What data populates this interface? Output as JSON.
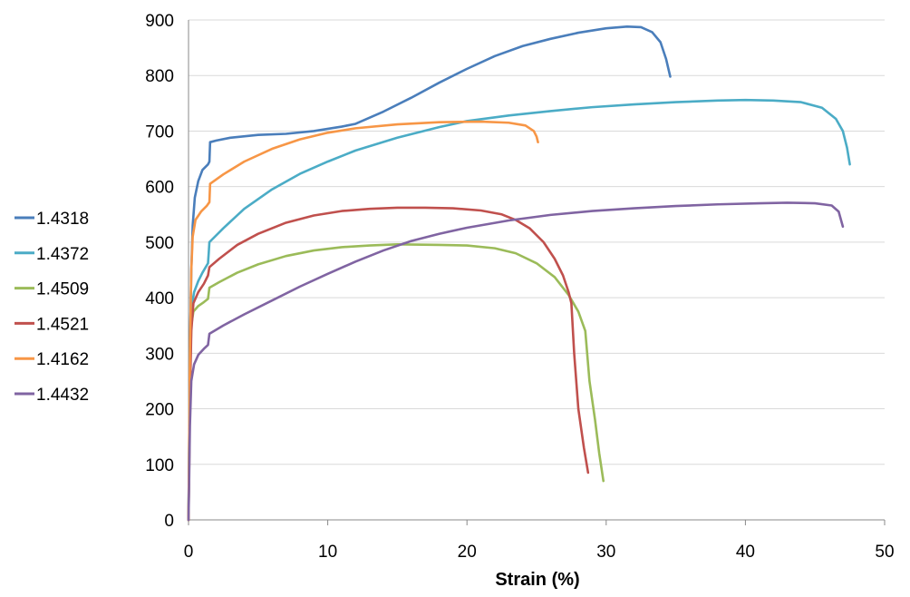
{
  "chart_data": {
    "type": "line",
    "title": "",
    "xlabel": "Strain (%)",
    "ylabel": "",
    "xlim": [
      0,
      50
    ],
    "ylim": [
      0,
      900
    ],
    "x_ticks": [
      "0",
      "10",
      "20",
      "30",
      "40",
      "50"
    ],
    "y_ticks": [
      "0",
      "100",
      "200",
      "300",
      "400",
      "500",
      "600",
      "700",
      "800",
      "900"
    ],
    "grid": "horizontal",
    "legend_position": "left",
    "series": [
      {
        "name": "1.4318",
        "color": "#4a7ebb",
        "points": [
          [
            0,
            0
          ],
          [
            0.05,
            150
          ],
          [
            0.1,
            300
          ],
          [
            0.2,
            450
          ],
          [
            0.3,
            530
          ],
          [
            0.45,
            580
          ],
          [
            0.7,
            610
          ],
          [
            1.0,
            630
          ],
          [
            1.4,
            640
          ],
          [
            1.5,
            645
          ],
          [
            1.55,
            680
          ],
          [
            2,
            683
          ],
          [
            3,
            688
          ],
          [
            5,
            693
          ],
          [
            7,
            695
          ],
          [
            9,
            700
          ],
          [
            11,
            708
          ],
          [
            12,
            713
          ],
          [
            14,
            735
          ],
          [
            16,
            760
          ],
          [
            18,
            787
          ],
          [
            20,
            812
          ],
          [
            22,
            835
          ],
          [
            24,
            853
          ],
          [
            26,
            866
          ],
          [
            28,
            877
          ],
          [
            30,
            885
          ],
          [
            31.5,
            888
          ],
          [
            32.5,
            887
          ],
          [
            33.3,
            878
          ],
          [
            33.9,
            860
          ],
          [
            34.3,
            830
          ],
          [
            34.6,
            798
          ]
        ]
      },
      {
        "name": "1.4372",
        "color": "#4bacc6",
        "points": [
          [
            0,
            0
          ],
          [
            0.05,
            150
          ],
          [
            0.1,
            300
          ],
          [
            0.2,
            380
          ],
          [
            0.4,
            410
          ],
          [
            0.7,
            430
          ],
          [
            1.0,
            445
          ],
          [
            1.4,
            462
          ],
          [
            1.45,
            480
          ],
          [
            1.5,
            500
          ],
          [
            2.5,
            525
          ],
          [
            4,
            560
          ],
          [
            6,
            595
          ],
          [
            8,
            623
          ],
          [
            10,
            645
          ],
          [
            12,
            665
          ],
          [
            15,
            688
          ],
          [
            18,
            707
          ],
          [
            20,
            718
          ],
          [
            23,
            728
          ],
          [
            26,
            736
          ],
          [
            29,
            743
          ],
          [
            32,
            748
          ],
          [
            35,
            752
          ],
          [
            38,
            755
          ],
          [
            40,
            756
          ],
          [
            42,
            755
          ],
          [
            44,
            752
          ],
          [
            45.5,
            742
          ],
          [
            46.5,
            722
          ],
          [
            47,
            700
          ],
          [
            47.3,
            670
          ],
          [
            47.5,
            640
          ]
        ]
      },
      {
        "name": "1.4509",
        "color": "#9bbb59",
        "points": [
          [
            0,
            0
          ],
          [
            0.05,
            120
          ],
          [
            0.1,
            250
          ],
          [
            0.2,
            350
          ],
          [
            0.35,
            375
          ],
          [
            0.7,
            385
          ],
          [
            1.1,
            392
          ],
          [
            1.4,
            398
          ],
          [
            1.5,
            418
          ],
          [
            2.2,
            428
          ],
          [
            3.5,
            445
          ],
          [
            5,
            460
          ],
          [
            7,
            475
          ],
          [
            9,
            485
          ],
          [
            11,
            491
          ],
          [
            13,
            494
          ],
          [
            15,
            496
          ],
          [
            18,
            495
          ],
          [
            20,
            494
          ],
          [
            22,
            489
          ],
          [
            23.5,
            480
          ],
          [
            25,
            462
          ],
          [
            26.3,
            437
          ],
          [
            27.3,
            405
          ],
          [
            28,
            375
          ],
          [
            28.5,
            340
          ],
          [
            28.8,
            250
          ],
          [
            29.2,
            180
          ],
          [
            29.5,
            120
          ],
          [
            29.8,
            70
          ]
        ]
      },
      {
        "name": "1.4521",
        "color": "#c0504d",
        "points": [
          [
            0,
            0
          ],
          [
            0.05,
            100
          ],
          [
            0.1,
            220
          ],
          [
            0.2,
            340
          ],
          [
            0.35,
            390
          ],
          [
            0.7,
            410
          ],
          [
            1.1,
            425
          ],
          [
            1.4,
            440
          ],
          [
            1.5,
            455
          ],
          [
            2.2,
            470
          ],
          [
            3.5,
            495
          ],
          [
            5,
            515
          ],
          [
            7,
            535
          ],
          [
            9,
            548
          ],
          [
            11,
            556
          ],
          [
            13,
            560
          ],
          [
            15,
            562
          ],
          [
            17,
            562
          ],
          [
            19,
            561
          ],
          [
            21,
            557
          ],
          [
            22.5,
            550
          ],
          [
            23.5,
            540
          ],
          [
            24.5,
            525
          ],
          [
            25.5,
            500
          ],
          [
            26.3,
            470
          ],
          [
            26.9,
            440
          ],
          [
            27.3,
            410
          ],
          [
            27.5,
            390
          ],
          [
            27.7,
            300
          ],
          [
            28.0,
            200
          ],
          [
            28.4,
            130
          ],
          [
            28.7,
            85
          ]
        ]
      },
      {
        "name": "1.4162",
        "color": "#f79646",
        "points": [
          [
            0,
            0
          ],
          [
            0.05,
            150
          ],
          [
            0.1,
            300
          ],
          [
            0.2,
            450
          ],
          [
            0.3,
            510
          ],
          [
            0.5,
            540
          ],
          [
            0.9,
            555
          ],
          [
            1.3,
            565
          ],
          [
            1.5,
            572
          ],
          [
            1.55,
            605
          ],
          [
            2.5,
            622
          ],
          [
            4,
            645
          ],
          [
            6,
            668
          ],
          [
            8,
            685
          ],
          [
            10,
            697
          ],
          [
            12,
            705
          ],
          [
            15,
            712
          ],
          [
            18,
            716
          ],
          [
            21,
            717
          ],
          [
            23,
            715
          ],
          [
            24.2,
            710
          ],
          [
            24.8,
            700
          ],
          [
            25.0,
            690
          ],
          [
            25.1,
            680
          ]
        ]
      },
      {
        "name": "1.4432",
        "color": "#8064a2",
        "points": [
          [
            0,
            0
          ],
          [
            0.05,
            80
          ],
          [
            0.1,
            170
          ],
          [
            0.2,
            250
          ],
          [
            0.4,
            280
          ],
          [
            0.7,
            297
          ],
          [
            1.1,
            308
          ],
          [
            1.4,
            315
          ],
          [
            1.5,
            335
          ],
          [
            2.5,
            350
          ],
          [
            4,
            370
          ],
          [
            6,
            395
          ],
          [
            8,
            420
          ],
          [
            10,
            443
          ],
          [
            12,
            465
          ],
          [
            14,
            485
          ],
          [
            16,
            502
          ],
          [
            18,
            515
          ],
          [
            20,
            526
          ],
          [
            23,
            539
          ],
          [
            26,
            549
          ],
          [
            29,
            556
          ],
          [
            32,
            561
          ],
          [
            35,
            565
          ],
          [
            38,
            568
          ],
          [
            41,
            570
          ],
          [
            43,
            571
          ],
          [
            45,
            570
          ],
          [
            46.2,
            566
          ],
          [
            46.7,
            555
          ],
          [
            47.0,
            528
          ]
        ]
      }
    ]
  }
}
